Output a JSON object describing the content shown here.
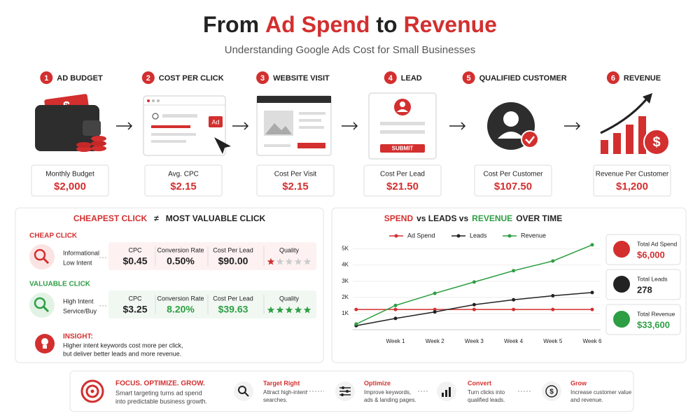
{
  "header": {
    "title": [
      {
        "text": "From",
        "accent": false
      },
      {
        "text": "Ad Spend",
        "accent": true
      },
      {
        "text": "to",
        "accent": false
      },
      {
        "text": "Revenue",
        "accent": true
      }
    ],
    "subtitle": "Understanding Google Ads Cost for Small Businesses"
  },
  "funnel": [
    {
      "number": "1",
      "label": "AD BUDGET",
      "metric_label": "Monthly Budget",
      "metric_value": "$2,000"
    },
    {
      "number": "2",
      "label": "COST PER CLICK",
      "metric_label": "Avg. CPC",
      "metric_value": "$2.15"
    },
    {
      "number": "3",
      "label": "WEBSITE VISIT",
      "metric_label": "Cost Per Visit",
      "metric_value": "$2.15"
    },
    {
      "number": "4",
      "label": "LEAD",
      "metric_label": "Cost Per Lead",
      "metric_value": "$21.50"
    },
    {
      "number": "5",
      "label": "QUALIFIED CUSTOMER",
      "metric_label": "Cost Per Customer",
      "metric_value": "$107.50"
    },
    {
      "number": "6",
      "label": "REVENUE",
      "metric_label": "Revenue Per Customer",
      "metric_value": "$1,200"
    }
  ],
  "comparison": {
    "title": [
      {
        "text": "CHEAPEST CLICK",
        "color": "#d32f2f"
      },
      {
        "text": "≠",
        "color": "#222"
      },
      {
        "text": "MOST VALUABLE CLICK",
        "color": "#222"
      }
    ],
    "columns": [
      "CPC",
      "Conversion Rate",
      "Cost Per Lead",
      "Quality"
    ],
    "rows": [
      {
        "label": "CHEAP CLICK",
        "intent": [
          "Informational",
          "Low Intent"
        ],
        "cpc": "$0.45",
        "conversion_rate": "0.50%",
        "cost_per_lead": "$90.00",
        "quality": 1,
        "quality_max": 5,
        "color": "#d32f2f"
      },
      {
        "label": "VALUABLE CLICK",
        "intent": [
          "High Intent",
          "Service/Buy"
        ],
        "cpc": "$3.25",
        "conversion_rate": "8.20%",
        "cost_per_lead": "$39.63",
        "quality": 5,
        "quality_max": 5,
        "color": "#2e9e44"
      }
    ],
    "insight": {
      "label": "INSIGHT:",
      "lines": [
        "Higher intent keywords cost more per click,",
        "but deliver better leads and more revenue."
      ]
    }
  },
  "chart_data": {
    "type": "line",
    "title": [
      {
        "text": "SPEND",
        "color": "#d32f2f"
      },
      {
        "text": "vs LEADS vs",
        "color": "#222"
      },
      {
        "text": "REVENUE",
        "color": "#2e9e44"
      },
      {
        "text": "OVER TIME",
        "color": "#222"
      }
    ],
    "categories": [
      null,
      "Week 1",
      "Week 2",
      "Week 3",
      "Week 4",
      "Week 5",
      "Week 6"
    ],
    "series": [
      {
        "name": "Ad Spend",
        "color": "#d32f2f",
        "values": [
          1250,
          1250,
          1250,
          1250,
          1250,
          1250,
          1250
        ]
      },
      {
        "name": "Leads",
        "color": "#222222",
        "values": [
          250,
          700,
          1100,
          1550,
          1850,
          2100,
          2300
        ]
      },
      {
        "name": "Revenue",
        "color": "#2e9e44",
        "values": [
          350,
          1500,
          2250,
          2950,
          3650,
          4250,
          5250
        ]
      }
    ],
    "ylim": [
      0,
      5500
    ],
    "yticks": [
      {
        "value": 1000,
        "label": "1K"
      },
      {
        "value": 2000,
        "label": "2K"
      },
      {
        "value": 3000,
        "label": "3K"
      },
      {
        "value": 4000,
        "label": "4K"
      },
      {
        "value": 5000,
        "label": "5K"
      }
    ],
    "legend": "top"
  },
  "totals": [
    {
      "label": "Total Ad Spend",
      "value": "$6,000",
      "color": "#d32f2f"
    },
    {
      "label": "Total Leads",
      "value": "278",
      "color": "#222222"
    },
    {
      "label": "Total Revenue",
      "value": "$33,600",
      "color": "#2e9e44"
    }
  ],
  "footer": {
    "title": "FOCUS. OPTIMIZE. GROW.",
    "text": [
      "Smart targeting turns ad spend",
      "into predictable business growth."
    ],
    "steps": [
      {
        "title": "Target Right",
        "text": [
          "Attract high-intent",
          "searches."
        ]
      },
      {
        "title": "Optimize",
        "text": [
          "Improve keywords,",
          "ads & landing pages."
        ]
      },
      {
        "title": "Convert",
        "text": [
          "Turn clicks into",
          "qualified leads."
        ]
      },
      {
        "title": "Grow",
        "text": [
          "Increase customer value",
          "and revenue."
        ]
      }
    ]
  }
}
